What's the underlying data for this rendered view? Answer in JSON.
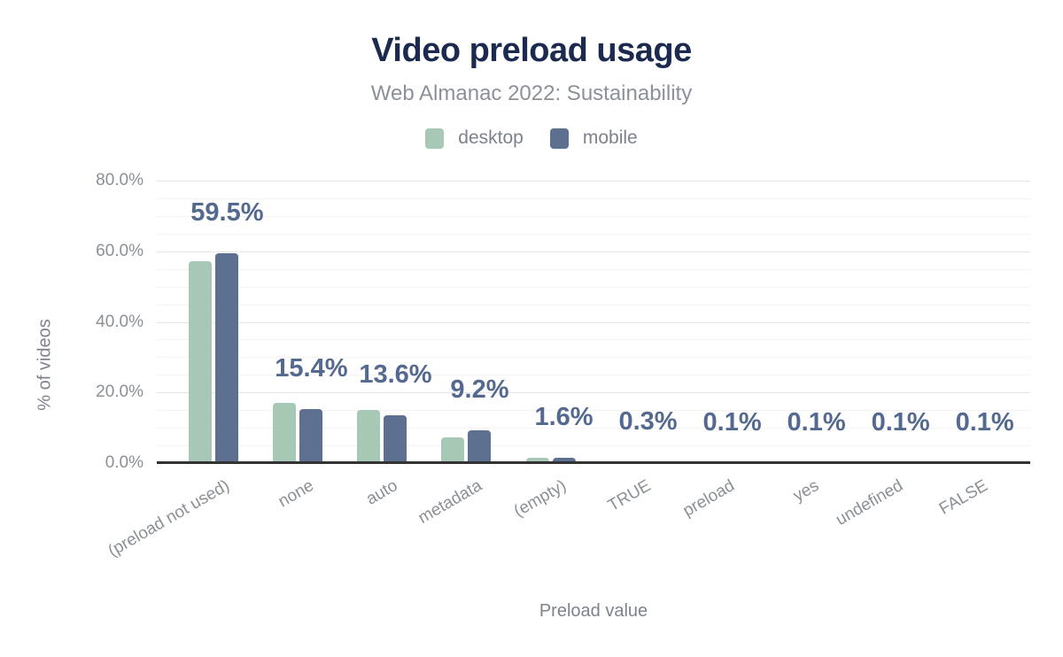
{
  "chart_data": {
    "type": "bar",
    "title": "Video preload usage",
    "subtitle": "Web Almanac 2022: Sustainability",
    "xlabel": "Preload value",
    "ylabel": "% of videos",
    "categories": [
      "(preload not used)",
      "none",
      "auto",
      "metadata",
      "(empty)",
      "TRUE",
      "preload",
      "yes",
      "undefined",
      "FALSE"
    ],
    "series": [
      {
        "name": "desktop",
        "color": "#a6c8b4",
        "values": [
          57.2,
          17.0,
          15.0,
          7.2,
          1.5,
          0.3,
          0.1,
          0.1,
          0.1,
          0.1
        ]
      },
      {
        "name": "mobile",
        "color": "#5d7090",
        "values": [
          59.5,
          15.4,
          13.6,
          9.2,
          1.6,
          0.3,
          0.1,
          0.1,
          0.1,
          0.1
        ]
      }
    ],
    "value_labels": [
      "59.5%",
      "15.4%",
      "13.6%",
      "9.2%",
      "1.6%",
      "0.3%",
      "0.1%",
      "0.1%",
      "0.1%",
      "0.1%"
    ],
    "value_labels_series": "mobile",
    "y_ticks": [
      {
        "value": 0,
        "label": "0.0%"
      },
      {
        "value": 20,
        "label": "20.0%"
      },
      {
        "value": 40,
        "label": "40.0%"
      },
      {
        "value": 60,
        "label": "60.0%"
      },
      {
        "value": 80,
        "label": "80.0%"
      }
    ],
    "ylim": [
      0,
      80
    ],
    "grid": {
      "show": true,
      "major_step": 20,
      "minor_step": 5
    },
    "legend_position": "top",
    "colors": {
      "title": "#1b2a4e",
      "subtitle": "#8b9199",
      "axis_text": "#8b9097",
      "value_label": "#54698f",
      "axis_line": "#333333",
      "grid_major": "#e6e6e6",
      "grid_minor": "#f4f4f4"
    }
  }
}
